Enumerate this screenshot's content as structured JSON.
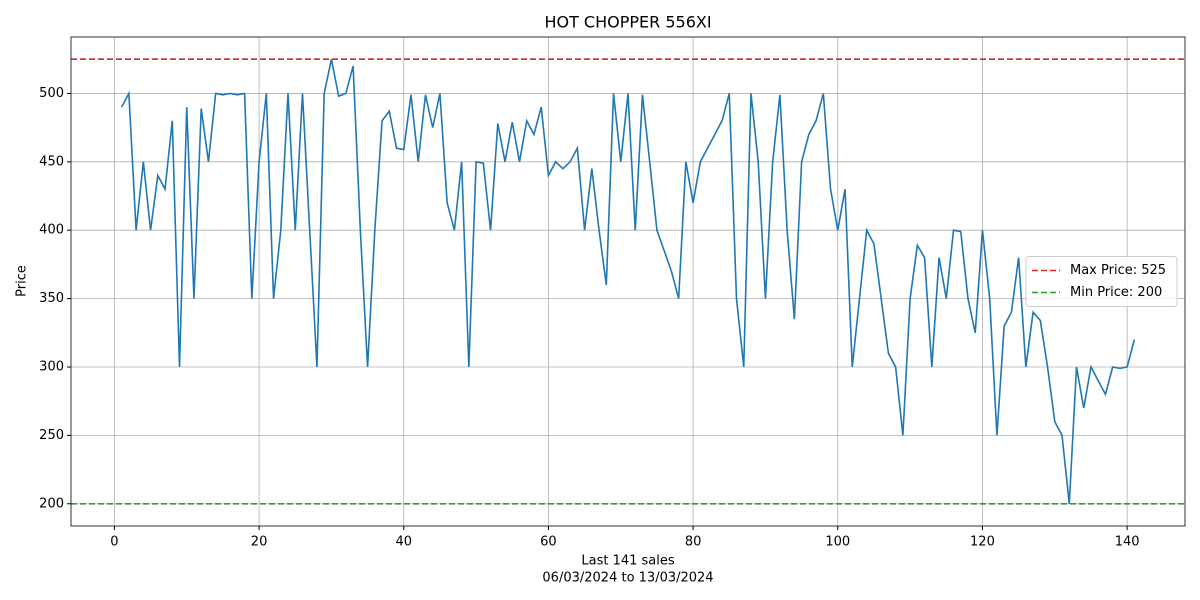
{
  "chart_data": {
    "type": "line",
    "title": "HOT CHOPPER 556XI",
    "xlabel_lines": [
      "Last 141 sales",
      "06/03/2024 to 13/03/2024"
    ],
    "ylabel": "Price",
    "color": "#1f77b4",
    "x": [
      1,
      2,
      3,
      4,
      5,
      6,
      7,
      8,
      9,
      10,
      11,
      12,
      13,
      14,
      15,
      16,
      17,
      18,
      19,
      20,
      21,
      22,
      23,
      24,
      25,
      26,
      27,
      28,
      29,
      30,
      31,
      32,
      33,
      34,
      35,
      36,
      37,
      38,
      39,
      40,
      41,
      42,
      43,
      44,
      45,
      46,
      47,
      48,
      49,
      50,
      51,
      52,
      53,
      54,
      55,
      56,
      57,
      58,
      59,
      60,
      61,
      62,
      63,
      64,
      65,
      66,
      67,
      68,
      69,
      70,
      71,
      72,
      73,
      74,
      75,
      76,
      77,
      78,
      79,
      80,
      81,
      82,
      83,
      84,
      85,
      86,
      87,
      88,
      89,
      90,
      91,
      92,
      93,
      94,
      95,
      96,
      97,
      98,
      99,
      100,
      101,
      102,
      103,
      104,
      105,
      106,
      107,
      108,
      109,
      110,
      111,
      112,
      113,
      114,
      115,
      116,
      117,
      118,
      119,
      120,
      121,
      122,
      123,
      124,
      125,
      126,
      127,
      128,
      129,
      130,
      131,
      132,
      133,
      134,
      135,
      136,
      137,
      138,
      139,
      140,
      141
    ],
    "values": [
      490,
      500,
      400,
      450,
      400,
      440,
      430,
      480,
      300,
      490,
      350,
      489,
      450,
      500,
      499,
      500,
      499,
      500,
      350,
      450,
      500,
      350,
      400,
      500,
      400,
      500,
      400,
      300,
      500,
      525,
      498,
      500,
      520,
      400,
      300,
      400,
      480,
      487,
      460,
      459,
      499,
      450,
      499,
      475,
      500,
      420,
      400,
      450,
      300,
      450,
      449,
      400,
      478,
      450,
      479,
      450,
      480,
      470,
      490,
      440,
      450,
      445,
      450,
      460,
      400,
      445,
      400,
      360,
      500,
      450,
      500,
      400,
      499,
      450,
      400,
      385,
      370,
      350,
      450,
      420,
      450,
      460,
      470,
      480,
      500,
      350,
      300,
      500,
      450,
      350,
      450,
      499,
      400,
      335,
      450,
      470,
      480,
      500,
      430,
      400,
      430,
      300,
      350,
      400,
      390,
      350,
      310,
      300,
      250,
      350,
      389,
      380,
      300,
      380,
      350,
      400,
      399,
      350,
      325,
      400,
      350,
      250,
      330,
      340,
      380,
      300,
      340,
      334,
      300,
      260,
      250,
      200,
      300,
      270,
      300,
      290,
      280,
      300,
      299,
      300,
      320
    ],
    "hlines": [
      {
        "label": "Max Price: 525",
        "value": 525,
        "color": "#d62728",
        "linestyle": "dashed"
      },
      {
        "label": "Min Price: 200",
        "value": 200,
        "color": "#2ca02c",
        "linestyle": "dashed"
      }
    ],
    "legend": "center right",
    "grid": true,
    "xlim": [
      -6,
      148
    ],
    "ylim": [
      183.75,
      541.25
    ],
    "xticks": [
      0,
      20,
      40,
      60,
      80,
      100,
      120,
      140
    ],
    "yticks": [
      200,
      250,
      300,
      350,
      400,
      450,
      500
    ]
  }
}
